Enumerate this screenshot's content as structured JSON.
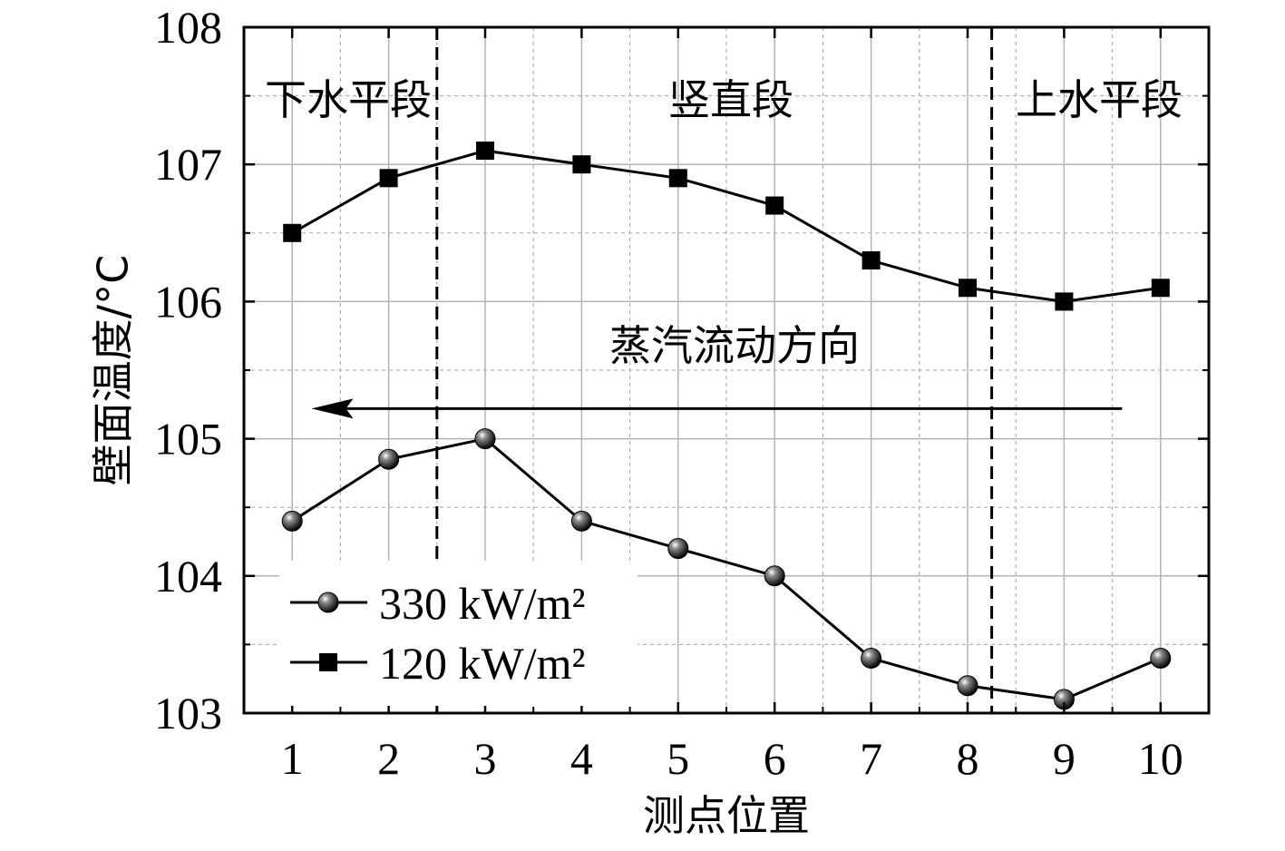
{
  "chart_data": {
    "type": "line",
    "xlabel": "测点位置",
    "ylabel": "壁面温度/°C",
    "x": [
      1,
      2,
      3,
      4,
      5,
      6,
      7,
      8,
      9,
      10
    ],
    "xticks": [
      "1",
      "2",
      "3",
      "4",
      "5",
      "6",
      "7",
      "8",
      "9",
      "10"
    ],
    "xlim": [
      0.5,
      10.5
    ],
    "ylim": [
      103,
      108
    ],
    "yticks": [
      "103",
      "104",
      "105",
      "106",
      "107",
      "108"
    ],
    "grid": true,
    "legend_position": "bottom-left",
    "series": [
      {
        "name": "330 kW/m²",
        "marker": "sphere",
        "values": [
          104.4,
          104.85,
          105.0,
          104.4,
          104.2,
          104.0,
          103.4,
          103.2,
          103.1,
          103.4
        ]
      },
      {
        "name": "120 kW/m²",
        "marker": "square",
        "values": [
          106.5,
          106.9,
          107.1,
          107.0,
          106.9,
          106.7,
          106.3,
          106.1,
          106.0,
          106.1
        ]
      }
    ],
    "section_dividers": [
      2.5,
      8.25
    ],
    "section_labels": [
      "下水平段",
      "竖直段",
      "上水平段"
    ],
    "annotation": {
      "text": "蒸汽流动方向",
      "arrow_from_x": 9.6,
      "arrow_to_x": 1.2,
      "arrow_y": 105.22,
      "arrow_direction": "left"
    },
    "colors": {
      "line": "#000000",
      "grid": "#b3b3b3",
      "frame": "#000000"
    }
  }
}
